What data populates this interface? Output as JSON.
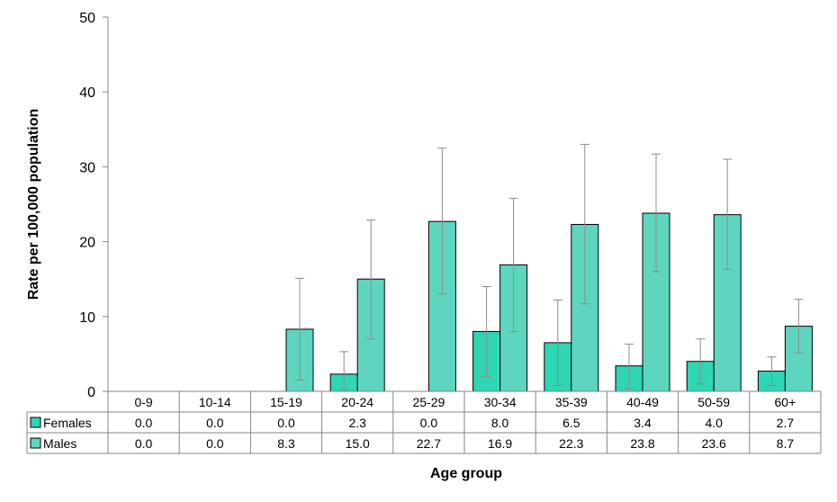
{
  "chart_data": {
    "type": "bar",
    "xlabel": "Age group",
    "ylabel": "Rate per 100,000 population",
    "ylim": [
      0,
      50
    ],
    "yticks": [
      0,
      10,
      20,
      30,
      40,
      50
    ],
    "categories": [
      "0-9",
      "10-14",
      "15-19",
      "20-24",
      "25-29",
      "30-34",
      "35-39",
      "40-49",
      "50-59",
      "60+"
    ],
    "series": [
      {
        "name": "Females",
        "color": "#2ed6b3",
        "values": [
          0.0,
          0.0,
          0.0,
          2.3,
          0.0,
          8.0,
          6.5,
          3.4,
          4.0,
          2.7
        ],
        "labels": [
          "0.0",
          "0.0",
          "0.0",
          "2.3",
          "0.0",
          "8.0",
          "6.5",
          "3.4",
          "4.0",
          "2.7"
        ],
        "error_low": [
          null,
          null,
          null,
          0.3,
          null,
          2.0,
          0.8,
          0.4,
          1.0,
          0.8
        ],
        "error_high": [
          null,
          null,
          null,
          5.3,
          null,
          14.0,
          12.2,
          6.3,
          7.0,
          4.6
        ]
      },
      {
        "name": "Males",
        "color": "#5ed6bf",
        "values": [
          0.0,
          0.0,
          8.3,
          15.0,
          22.7,
          16.9,
          22.3,
          23.8,
          23.6,
          8.7
        ],
        "labels": [
          "0.0",
          "0.0",
          "8.3",
          "15.0",
          "22.7",
          "16.9",
          "22.3",
          "23.8",
          "23.6",
          "8.7"
        ],
        "error_low": [
          null,
          null,
          1.5,
          7.0,
          13.0,
          8.0,
          11.7,
          16.0,
          16.3,
          5.1
        ],
        "error_high": [
          null,
          null,
          15.1,
          22.9,
          32.5,
          25.8,
          33.0,
          31.7,
          31.0,
          12.3
        ]
      }
    ],
    "grid": false,
    "legend": "data-table"
  }
}
